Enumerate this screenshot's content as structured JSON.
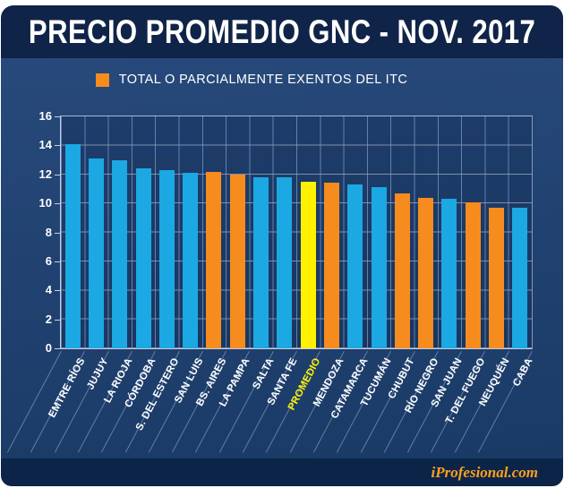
{
  "header": {
    "title": "PRECIO PROMEDIO GNC - NOV. 2017"
  },
  "legend": {
    "label": "TOTAL O PARCIALMENTE EXENTOS DEL ITC",
    "swatch": "orange-square"
  },
  "footer": {
    "brand": "iProfesional.com"
  },
  "colors": {
    "blue": "#1CA8E2",
    "orange": "#F68B1E",
    "yellow": "#FFF100",
    "header_bg": "#0F2448",
    "footer_bg": "#0D2449",
    "panel_bg": "#20416F",
    "brand_text": "#F9A11C",
    "label_text": "#FFFFFF",
    "promedio_label_text": "#FFF100"
  },
  "chart_data": {
    "type": "bar",
    "title": "PRECIO PROMEDIO GNC - NOV. 2017",
    "xlabel": "",
    "ylabel": "",
    "ylim": [
      0,
      16
    ],
    "yticks": [
      0,
      2,
      4,
      6,
      8,
      10,
      12,
      14,
      16
    ],
    "grid": true,
    "legend_position": "top-center",
    "legend_entries": [
      {
        "label": "TOTAL O PARCIALMENTE EXENTOS DEL ITC",
        "color": "orange"
      }
    ],
    "categories": [
      "EMTRE RÍOS",
      "JUJUY",
      "LA RIOJA",
      "CÓRDOBA",
      "S. DEL ESTERO",
      "SAN LUIS",
      "BS. AIRES",
      "LA PAMPA",
      "SALTA",
      "SANTA FE",
      "PROMEDIO",
      "MENDOZA",
      "CATAMARCA",
      "TUCUMÁN",
      "CHUBUT",
      "RÍO NEGRO",
      "SAN JUAN",
      "T. DEL FUEGO",
      "NEUQUÉN",
      "CABA"
    ],
    "values": [
      14.1,
      13.1,
      13.0,
      12.4,
      12.3,
      12.1,
      12.2,
      12.0,
      11.8,
      11.8,
      11.5,
      11.4,
      11.3,
      11.1,
      10.7,
      10.4,
      10.3,
      10.1,
      9.7,
      9.7
    ],
    "bar_colors": [
      "blue",
      "blue",
      "blue",
      "blue",
      "blue",
      "blue",
      "orange",
      "orange",
      "blue",
      "blue",
      "yellow",
      "orange",
      "blue",
      "blue",
      "orange",
      "orange",
      "blue",
      "orange",
      "orange",
      "blue"
    ],
    "highlight_category": "PROMEDIO"
  }
}
